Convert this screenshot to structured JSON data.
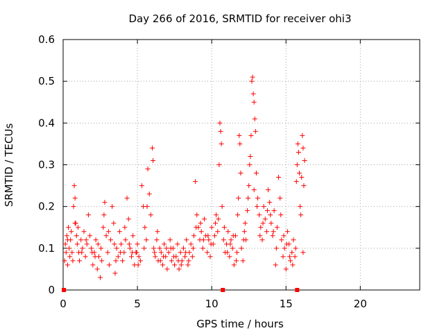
{
  "chart_data": {
    "type": "scatter",
    "title": "Day 266 of 2016, SRMTID for receiver ohi3",
    "xlabel": "GPS time / hours",
    "ylabel": "SRMTID / TECUs",
    "xlim": [
      0,
      24
    ],
    "ylim": [
      0,
      0.6
    ],
    "grid": true,
    "marker": "+",
    "color": "#ff0000",
    "x_ticks": [
      0,
      5,
      10,
      15,
      20
    ],
    "x_tick_labels": [
      "0",
      "5",
      "10",
      "15",
      "20"
    ],
    "y_ticks": [
      0,
      0.1,
      0.2,
      0.3,
      0.4,
      0.5,
      0.6
    ],
    "y_tick_labels": [
      "0",
      "0.1",
      "0.2",
      "0.3",
      "0.4",
      "0.5",
      "0.6"
    ],
    "zero_points": [
      0.05,
      10.75,
      15.75
    ],
    "series": [
      {
        "name": "SRMTID",
        "points": [
          [
            0.1,
            0.07
          ],
          [
            0.15,
            0.11
          ],
          [
            0.2,
            0.09
          ],
          [
            0.25,
            0.13
          ],
          [
            0.3,
            0.06
          ],
          [
            0.35,
            0.15
          ],
          [
            0.4,
            0.1
          ],
          [
            0.45,
            0.08
          ],
          [
            0.5,
            0.12
          ],
          [
            0.55,
            0.14
          ],
          [
            0.6,
            0.09
          ],
          [
            0.65,
            0.07
          ],
          [
            0.7,
            0.2
          ],
          [
            0.75,
            0.25
          ],
          [
            0.8,
            0.22
          ],
          [
            0.85,
            0.16
          ],
          [
            0.9,
            0.13
          ],
          [
            0.95,
            0.11
          ],
          [
            1.0,
            0.15
          ],
          [
            1.05,
            0.09
          ],
          [
            1.1,
            0.07
          ],
          [
            1.2,
            0.12
          ],
          [
            1.3,
            0.1
          ],
          [
            1.4,
            0.14
          ],
          [
            1.5,
            0.08
          ],
          [
            1.6,
            0.11
          ],
          [
            1.7,
            0.18
          ],
          [
            1.8,
            0.13
          ],
          [
            1.9,
            0.1
          ],
          [
            2.0,
            0.06
          ],
          [
            2.1,
            0.09
          ],
          [
            2.2,
            0.12
          ],
          [
            2.3,
            0.05
          ],
          [
            2.4,
            0.08
          ],
          [
            2.5,
            0.03
          ],
          [
            2.55,
            0.1
          ],
          [
            2.6,
            0.07
          ],
          [
            2.7,
            0.15
          ],
          [
            2.8,
            0.21
          ],
          [
            2.9,
            0.13
          ],
          [
            3.0,
            0.09
          ],
          [
            3.1,
            0.06
          ],
          [
            3.2,
            0.12
          ],
          [
            3.3,
            0.2
          ],
          [
            3.4,
            0.16
          ],
          [
            3.5,
            0.04
          ],
          [
            3.6,
            0.1
          ],
          [
            3.7,
            0.08
          ],
          [
            3.8,
            0.14
          ],
          [
            3.9,
            0.11
          ],
          [
            4.0,
            0.07
          ],
          [
            4.1,
            0.09
          ],
          [
            4.2,
            0.12
          ],
          [
            4.3,
            0.22
          ],
          [
            4.4,
            0.17
          ],
          [
            4.5,
            0.1
          ],
          [
            4.6,
            0.08
          ],
          [
            4.7,
            0.13
          ],
          [
            4.8,
            0.06
          ],
          [
            4.9,
            0.09
          ],
          [
            5.0,
            0.11
          ],
          [
            5.1,
            0.08
          ],
          [
            5.2,
            0.07
          ],
          [
            5.3,
            0.25
          ],
          [
            5.4,
            0.2
          ],
          [
            5.5,
            0.15
          ],
          [
            5.6,
            0.12
          ],
          [
            5.7,
            0.29
          ],
          [
            5.8,
            0.23
          ],
          [
            5.9,
            0.18
          ],
          [
            6.0,
            0.34
          ],
          [
            6.05,
            0.31
          ],
          [
            6.1,
            0.1
          ],
          [
            6.2,
            0.08
          ],
          [
            6.3,
            0.12
          ],
          [
            6.4,
            0.07
          ],
          [
            6.5,
            0.1
          ],
          [
            6.6,
            0.09
          ],
          [
            6.7,
            0.06
          ],
          [
            6.8,
            0.11
          ],
          [
            6.9,
            0.08
          ],
          [
            7.0,
            0.05
          ],
          [
            7.1,
            0.09
          ],
          [
            7.2,
            0.12
          ],
          [
            7.3,
            0.07
          ],
          [
            7.4,
            0.1
          ],
          [
            7.5,
            0.06
          ],
          [
            7.6,
            0.08
          ],
          [
            7.7,
            0.11
          ],
          [
            7.8,
            0.05
          ],
          [
            7.9,
            0.09
          ],
          [
            8.0,
            0.07
          ],
          [
            8.1,
            0.1
          ],
          [
            8.2,
            0.08
          ],
          [
            8.3,
            0.12
          ],
          [
            8.4,
            0.06
          ],
          [
            8.5,
            0.09
          ],
          [
            8.6,
            0.11
          ],
          [
            8.7,
            0.08
          ],
          [
            8.8,
            0.13
          ],
          [
            8.9,
            0.26
          ],
          [
            9.0,
            0.18
          ],
          [
            9.1,
            0.15
          ],
          [
            9.2,
            0.12
          ],
          [
            9.3,
            0.14
          ],
          [
            9.4,
            0.1
          ],
          [
            9.5,
            0.17
          ],
          [
            9.6,
            0.13
          ],
          [
            9.7,
            0.09
          ],
          [
            9.8,
            0.12
          ],
          [
            9.9,
            0.08
          ],
          [
            10.0,
            0.15
          ],
          [
            10.1,
            0.11
          ],
          [
            10.2,
            0.13
          ],
          [
            10.3,
            0.18
          ],
          [
            10.4,
            0.14
          ],
          [
            10.5,
            0.3
          ],
          [
            10.55,
            0.4
          ],
          [
            10.6,
            0.38
          ],
          [
            10.65,
            0.35
          ],
          [
            10.7,
            0.2
          ],
          [
            10.8,
            0.12
          ],
          [
            10.9,
            0.09
          ],
          [
            11.0,
            0.11
          ],
          [
            11.1,
            0.14
          ],
          [
            11.2,
            0.08
          ],
          [
            11.3,
            0.12
          ],
          [
            11.4,
            0.1
          ],
          [
            11.5,
            0.06
          ],
          [
            11.6,
            0.13
          ],
          [
            11.7,
            0.09
          ],
          [
            11.8,
            0.22
          ],
          [
            11.85,
            0.37
          ],
          [
            11.9,
            0.35
          ],
          [
            11.95,
            0.28
          ],
          [
            12.0,
            0.1
          ],
          [
            12.1,
            0.07
          ],
          [
            12.2,
            0.14
          ],
          [
            12.3,
            0.12
          ],
          [
            12.4,
            0.19
          ],
          [
            12.5,
            0.25
          ],
          [
            12.55,
            0.3
          ],
          [
            12.6,
            0.32
          ],
          [
            12.65,
            0.37
          ],
          [
            12.7,
            0.5
          ],
          [
            12.75,
            0.51
          ],
          [
            12.8,
            0.47
          ],
          [
            12.85,
            0.45
          ],
          [
            12.9,
            0.41
          ],
          [
            12.95,
            0.38
          ],
          [
            13.0,
            0.28
          ],
          [
            13.1,
            0.22
          ],
          [
            13.2,
            0.18
          ],
          [
            13.3,
            0.15
          ],
          [
            13.4,
            0.12
          ],
          [
            13.5,
            0.2
          ],
          [
            13.6,
            0.17
          ],
          [
            13.7,
            0.14
          ],
          [
            13.8,
            0.24
          ],
          [
            13.9,
            0.21
          ],
          [
            14.0,
            0.16
          ],
          [
            14.1,
            0.13
          ],
          [
            14.2,
            0.19
          ],
          [
            14.3,
            0.06
          ],
          [
            14.4,
            0.15
          ],
          [
            14.5,
            0.27
          ],
          [
            14.6,
            0.22
          ],
          [
            14.7,
            0.12
          ],
          [
            14.8,
            0.08
          ],
          [
            14.9,
            0.1
          ],
          [
            15.0,
            0.05
          ],
          [
            15.1,
            0.14
          ],
          [
            15.2,
            0.11
          ],
          [
            15.3,
            0.07
          ],
          [
            15.4,
            0.09
          ],
          [
            15.5,
            0.12
          ],
          [
            15.6,
            0.08
          ],
          [
            15.7,
            0.26
          ],
          [
            15.75,
            0.3
          ],
          [
            15.8,
            0.35
          ],
          [
            15.85,
            0.33
          ],
          [
            15.9,
            0.28
          ],
          [
            15.95,
            0.2
          ],
          [
            16.0,
            0.18
          ],
          [
            16.05,
            0.27
          ],
          [
            16.1,
            0.37
          ],
          [
            16.15,
            0.34
          ],
          [
            16.2,
            0.25
          ],
          [
            16.25,
            0.31
          ],
          [
            0.3,
            0.12
          ],
          [
            0.8,
            0.16
          ],
          [
            1.25,
            0.09
          ],
          [
            2.15,
            0.08
          ],
          [
            2.75,
            0.18
          ],
          [
            3.45,
            0.11
          ],
          [
            4.15,
            0.15
          ],
          [
            4.65,
            0.09
          ],
          [
            5.05,
            0.06
          ],
          [
            5.45,
            0.1
          ],
          [
            6.35,
            0.14
          ],
          [
            6.75,
            0.08
          ],
          [
            7.25,
            0.1
          ],
          [
            7.75,
            0.07
          ],
          [
            8.25,
            0.09
          ],
          [
            8.75,
            0.1
          ],
          [
            9.25,
            0.16
          ],
          [
            9.75,
            0.13
          ],
          [
            10.25,
            0.16
          ],
          [
            10.85,
            0.15
          ],
          [
            11.25,
            0.11
          ],
          [
            11.65,
            0.07
          ],
          [
            12.15,
            0.12
          ],
          [
            12.45,
            0.22
          ],
          [
            13.05,
            0.2
          ],
          [
            13.45,
            0.16
          ],
          [
            13.95,
            0.18
          ],
          [
            14.35,
            0.1
          ],
          [
            14.85,
            0.13
          ],
          [
            15.25,
            0.08
          ],
          [
            15.65,
            0.1
          ],
          [
            1.55,
            0.12
          ],
          [
            1.95,
            0.09
          ],
          [
            2.35,
            0.11
          ],
          [
            3.05,
            0.14
          ],
          [
            3.55,
            0.07
          ],
          [
            3.85,
            0.09
          ],
          [
            4.45,
            0.11
          ],
          [
            4.95,
            0.09
          ],
          [
            5.65,
            0.2
          ],
          [
            6.15,
            0.09
          ],
          [
            6.55,
            0.07
          ],
          [
            6.95,
            0.1
          ],
          [
            7.45,
            0.08
          ],
          [
            7.95,
            0.06
          ],
          [
            8.45,
            0.07
          ],
          [
            8.95,
            0.15
          ],
          [
            9.45,
            0.12
          ],
          [
            9.95,
            0.11
          ],
          [
            10.45,
            0.17
          ],
          [
            11.05,
            0.09
          ],
          [
            11.45,
            0.13
          ],
          [
            11.75,
            0.18
          ],
          [
            12.25,
            0.16
          ],
          [
            12.85,
            0.24
          ],
          [
            13.25,
            0.13
          ],
          [
            13.75,
            0.19
          ],
          [
            14.15,
            0.14
          ],
          [
            14.65,
            0.18
          ],
          [
            15.05,
            0.11
          ],
          [
            15.45,
            0.06
          ],
          [
            16.15,
            0.09
          ]
        ]
      }
    ]
  }
}
